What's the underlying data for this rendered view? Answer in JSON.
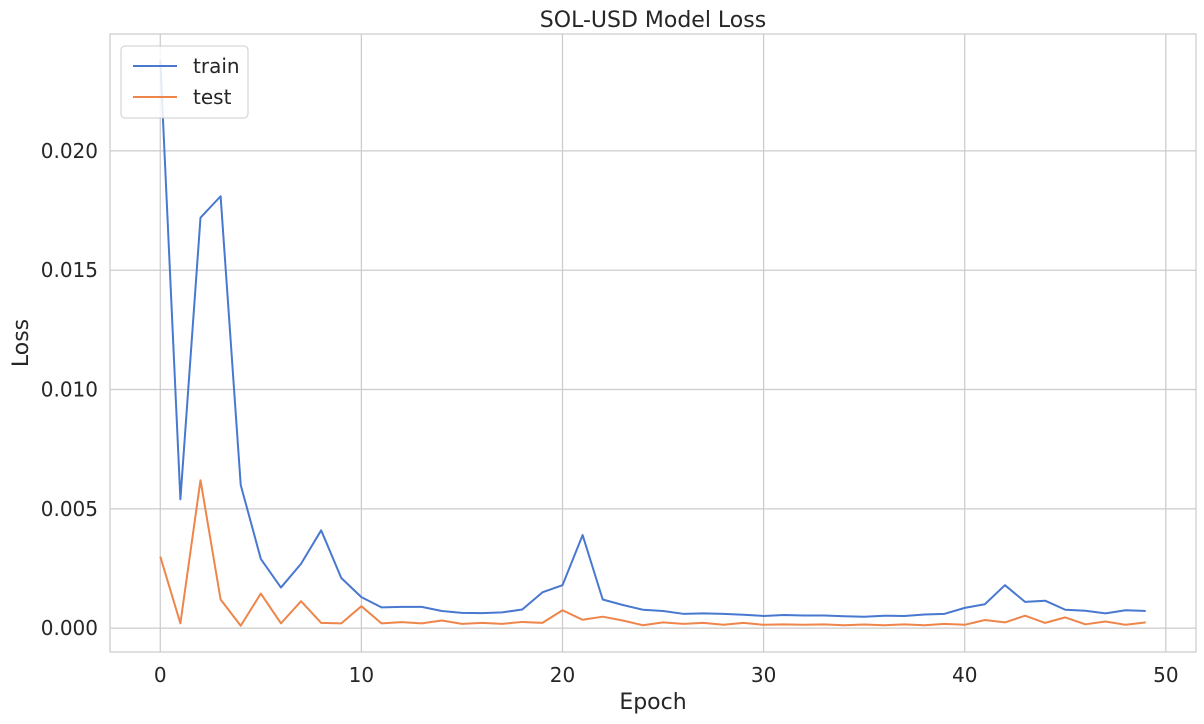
{
  "chart_data": {
    "type": "line",
    "title": "SOL-USD Model Loss",
    "xlabel": "Epoch",
    "ylabel": "Loss",
    "xlim": [
      -2.5,
      51.5
    ],
    "ylim": [
      -0.001,
      0.0249
    ],
    "xticks": [
      0,
      10,
      20,
      30,
      40,
      50
    ],
    "xtick_labels": [
      "0",
      "10",
      "20",
      "30",
      "40",
      "50"
    ],
    "yticks": [
      0.0,
      0.005,
      0.01,
      0.015,
      0.02
    ],
    "ytick_labels": [
      "0.000",
      "0.005",
      "0.010",
      "0.015",
      "0.020"
    ],
    "grid": true,
    "legend_position": "upper left",
    "x": [
      0,
      1,
      2,
      3,
      4,
      5,
      6,
      7,
      8,
      9,
      10,
      11,
      12,
      13,
      14,
      15,
      16,
      17,
      18,
      19,
      20,
      21,
      22,
      23,
      24,
      25,
      26,
      27,
      28,
      29,
      30,
      31,
      32,
      33,
      34,
      35,
      36,
      37,
      38,
      39,
      40,
      41,
      42,
      43,
      44,
      45,
      46,
      47,
      48,
      49
    ],
    "series": [
      {
        "name": "train",
        "color": "#4878d0",
        "values": [
          0.0238,
          0.0054,
          0.0172,
          0.0181,
          0.006,
          0.0029,
          0.0017,
          0.0027,
          0.0041,
          0.0021,
          0.0013,
          0.00087,
          0.00089,
          0.00089,
          0.00072,
          0.00064,
          0.00063,
          0.00066,
          0.00078,
          0.0015,
          0.0018,
          0.0039,
          0.0012,
          0.00097,
          0.00077,
          0.00072,
          0.0006,
          0.00062,
          0.0006,
          0.00056,
          0.00051,
          0.00055,
          0.00053,
          0.00053,
          0.0005,
          0.00048,
          0.00052,
          0.00051,
          0.00057,
          0.0006,
          0.00085,
          0.001,
          0.0018,
          0.0011,
          0.00115,
          0.00077,
          0.00073,
          0.00062,
          0.00075,
          0.00072
        ]
      },
      {
        "name": "test",
        "color": "#ee854a",
        "values": [
          0.003,
          0.0002,
          0.0062,
          0.0012,
          0.0001,
          0.00145,
          0.0002,
          0.00113,
          0.00022,
          0.0002,
          0.00092,
          0.0002,
          0.00025,
          0.0002,
          0.00032,
          0.00018,
          0.00022,
          0.00018,
          0.00026,
          0.00022,
          0.00075,
          0.00035,
          0.00048,
          0.00032,
          0.00012,
          0.00024,
          0.00018,
          0.00022,
          0.00014,
          0.00022,
          0.00014,
          0.00016,
          0.00014,
          0.00016,
          0.00012,
          0.00015,
          0.00012,
          0.00016,
          0.00012,
          0.00018,
          0.00014,
          0.00034,
          0.00024,
          0.00052,
          0.00022,
          0.00045,
          0.00016,
          0.00028,
          0.00014,
          0.00024
        ]
      }
    ]
  }
}
